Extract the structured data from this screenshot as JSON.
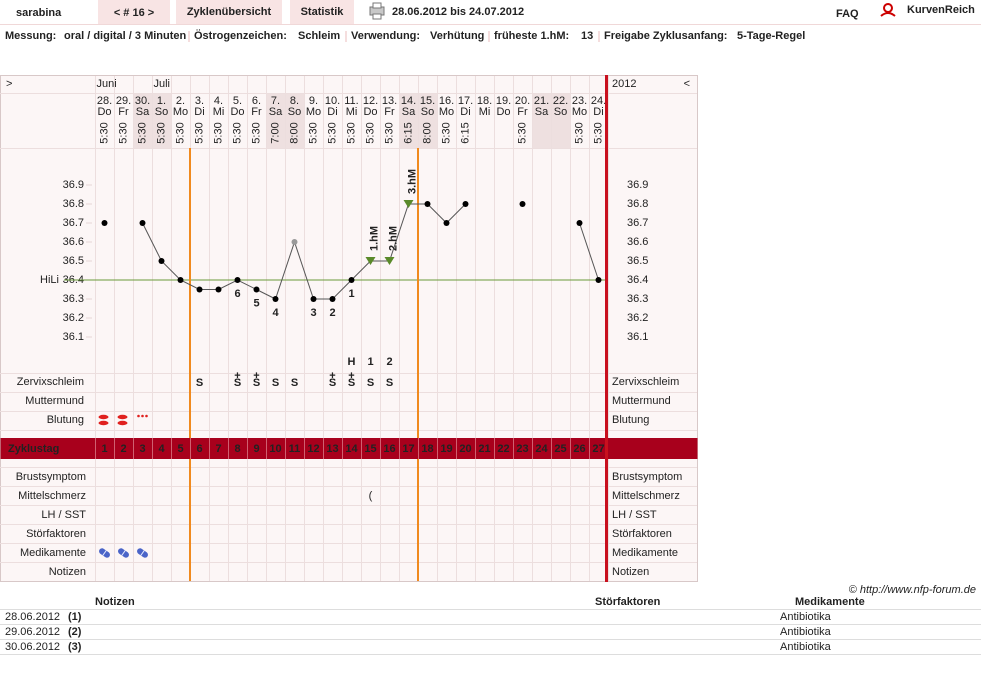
{
  "header": {
    "user": "sarabina",
    "cycle": "< # 16 >",
    "tabs": [
      "Zyklenübersicht",
      "Statistik"
    ],
    "range": "28.06.2012 bis 24.07.2012",
    "faq": "FAQ",
    "brand": "KurvenReich"
  },
  "info": [
    {
      "label": "Messung:",
      "value": "oral / digital / 3 Minuten"
    },
    {
      "label": "Östrogenzeichen:",
      "value": "Schleim"
    },
    {
      "label": "Verwendung:",
      "value": "Verhütung"
    },
    {
      "label": "früheste 1.hM:",
      "value": "13"
    },
    {
      "label": "Freigabe Zyklusanfang:",
      "value": "5-Tage-Regel"
    }
  ],
  "chart_data": {
    "type": "line",
    "nav_left": ">",
    "nav_right": "<",
    "year": "2012",
    "months": [
      "Juni",
      null,
      null,
      "Juli",
      null,
      null,
      null,
      null,
      null,
      null,
      null,
      null,
      null,
      null,
      null,
      null,
      null,
      null,
      null,
      null,
      null,
      null,
      null,
      null,
      null,
      null,
      null
    ],
    "days": [
      "28.",
      "29.",
      "30.",
      "1.",
      "2.",
      "3.",
      "4.",
      "5.",
      "6.",
      "7.",
      "8.",
      "9.",
      "10.",
      "11.",
      "12.",
      "13.",
      "14.",
      "15.",
      "16.",
      "17.",
      "18.",
      "19.",
      "20.",
      "21.",
      "22.",
      "23.",
      "24."
    ],
    "weekdays": [
      "Do",
      "Fr",
      "Sa",
      "So",
      "Mo",
      "Di",
      "Mi",
      "Do",
      "Fr",
      "Sa",
      "So",
      "Mo",
      "Di",
      "Mi",
      "Do",
      "Fr",
      "Sa",
      "So",
      "Mo",
      "Di",
      "Mi",
      "Do",
      "Fr",
      "Sa",
      "So",
      "Mo",
      "Di"
    ],
    "times": [
      "5:30",
      "5:30",
      "5:30",
      "5:30",
      "5:30",
      "5:30",
      "5:30",
      "5:30",
      "5:30",
      "7:00",
      "8:00",
      "5:30",
      "5:30",
      "5:30",
      "5:30",
      "5:30",
      "6:15",
      "8:00",
      "5:30",
      "6:15",
      null,
      null,
      "5:30",
      null,
      null,
      "5:30",
      "5:30"
    ],
    "x": [
      1,
      2,
      3,
      4,
      5,
      6,
      7,
      8,
      9,
      10,
      11,
      12,
      13,
      14,
      15,
      16,
      17,
      18,
      19,
      20,
      21,
      22,
      23,
      24,
      25,
      26,
      27
    ],
    "values": [
      36.7,
      null,
      36.7,
      36.5,
      36.4,
      36.35,
      36.35,
      36.4,
      36.35,
      36.3,
      36.6,
      36.3,
      36.3,
      36.4,
      36.5,
      36.5,
      36.8,
      36.8,
      36.7,
      36.8,
      null,
      null,
      36.8,
      null,
      null,
      36.7,
      36.4
    ],
    "excluded_points": [
      10
    ],
    "point_labels": [
      null,
      null,
      null,
      null,
      null,
      null,
      null,
      "6",
      "5",
      "4",
      null,
      "3",
      "2",
      "1",
      null,
      null,
      null,
      null,
      null,
      null,
      null,
      null,
      null,
      null,
      null,
      null,
      null
    ],
    "hm_labels": [
      null,
      null,
      null,
      null,
      null,
      null,
      null,
      null,
      null,
      null,
      null,
      null,
      null,
      null,
      "1.hM",
      "2.hM",
      "3.hM",
      null,
      null,
      null,
      null,
      null,
      null,
      null,
      null,
      null,
      null
    ],
    "color": "#000000",
    "hm_color": "#5a8a2a",
    "ylim": [
      36.0,
      37.1
    ],
    "yticks": [
      36.1,
      36.2,
      36.3,
      36.4,
      36.5,
      36.6,
      36.7,
      36.8,
      36.9
    ],
    "hili": {
      "label": "HiLi",
      "value": 36.4,
      "color": "#6a9a3a"
    },
    "fertile": [
      6,
      17
    ],
    "rows_upper": [
      {
        "label": "Zervixschleim",
        "color": "#e8820e",
        "peak": [
          null,
          null,
          null,
          null,
          null,
          null,
          null,
          null,
          null,
          null,
          null,
          null,
          null,
          "H",
          "1",
          "2",
          null,
          null,
          null,
          null,
          null,
          null,
          null,
          null,
          null,
          null,
          null
        ],
        "plus": [
          null,
          null,
          null,
          null,
          null,
          null,
          null,
          "+",
          "+",
          null,
          null,
          null,
          "+",
          "+",
          null,
          null,
          null,
          null,
          null,
          null,
          null,
          null,
          null,
          null,
          null,
          null,
          null
        ],
        "cells": [
          null,
          null,
          null,
          null,
          null,
          "S",
          null,
          "S",
          "S",
          "S",
          "S",
          null,
          "S",
          "S",
          "S",
          "S",
          null,
          null,
          null,
          null,
          null,
          null,
          null,
          null,
          null,
          null,
          null
        ]
      },
      {
        "label": "Muttermund",
        "color": "#4a64c8"
      },
      {
        "label": "Blutung",
        "color": "#222222",
        "bleeding": [
          "heavy",
          "heavy",
          "spotting",
          null,
          null,
          null,
          null,
          null,
          null,
          null,
          null,
          null,
          null,
          null,
          null,
          null,
          null,
          null,
          null,
          null,
          null,
          null,
          null,
          null,
          null,
          null,
          null
        ]
      }
    ],
    "cycle_label": "Zyklustag",
    "rows_lower": [
      {
        "label": "Brustsymptom"
      },
      {
        "label": "Mittelschmerz",
        "cells": [
          null,
          null,
          null,
          null,
          null,
          null,
          null,
          null,
          null,
          null,
          null,
          null,
          null,
          null,
          "(",
          null,
          null,
          null,
          null,
          null,
          null,
          null,
          null,
          null,
          null,
          null,
          null
        ]
      },
      {
        "label": "LH / SST"
      },
      {
        "label": "Störfaktoren"
      },
      {
        "label": "Medikamente",
        "medication": [
          true,
          true,
          true,
          false,
          false,
          false,
          false,
          false,
          false,
          false,
          false,
          false,
          false,
          false,
          false,
          false,
          false,
          false,
          false,
          false,
          false,
          false,
          false,
          false,
          false,
          false,
          false
        ]
      },
      {
        "label": "Notizen"
      }
    ]
  },
  "footer": {
    "copyright": "© http://www.nfp-forum.de",
    "table": {
      "headers": [
        "Notizen",
        "Störfaktoren",
        "Medikamente"
      ],
      "rows": [
        [
          "28.06.2012",
          "(1)",
          "Antibiotika"
        ],
        [
          "29.06.2012",
          "(2)",
          "Antibiotika"
        ],
        [
          "30.06.2012",
          "(3)",
          "Antibiotika"
        ]
      ]
    }
  }
}
